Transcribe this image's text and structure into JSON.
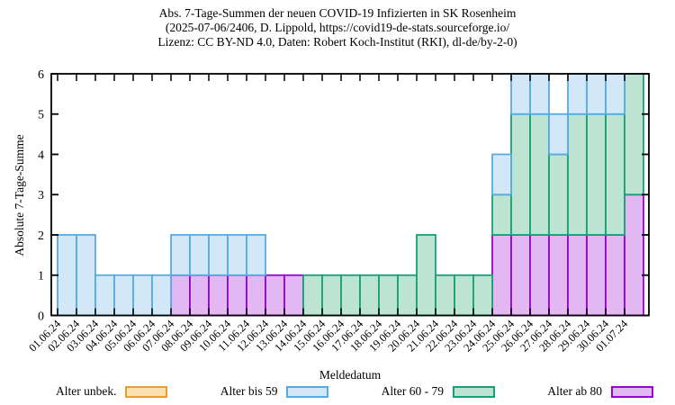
{
  "title": {
    "line1": "Abs. 7-Tage-Summen der neuen COVID-19 Infizierten in SK Rosenheim",
    "line2": "(2025-07-06/2406, D. Lippold, https://covid19-de-stats.sourceforge.io/",
    "line3": "Lizenz: CC BY-ND 4.0, Daten: Robert Koch-Institut (RKI), dl-de/by-2-0)"
  },
  "axes": {
    "y_label": "Absolute 7-Tage-Summe",
    "x_label": "Meldedatum",
    "y_ticks": [
      0,
      1,
      2,
      3,
      4,
      5,
      6
    ],
    "y_range": [
      0,
      6
    ]
  },
  "legend": {
    "items": [
      {
        "label": "Alter unbek.",
        "fill": "#FBE1AE",
        "border": "#E69F33"
      },
      {
        "label": "Alter bis 59",
        "fill": "#D2E8F8",
        "border": "#58ABE0"
      },
      {
        "label": "Alter 60 - 79",
        "fill": "#BDE4D2",
        "border": "#17A077"
      },
      {
        "label": "Alter ab 80",
        "fill": "#E3B7F2",
        "border": "#9405D2"
      }
    ]
  },
  "chart_data": {
    "type": "bar",
    "stacked": true,
    "title": "Abs. 7-Tage-Summen der neuen COVID-19 Infizierten in SK Rosenheim",
    "xlabel": "Meldedatum",
    "ylabel": "Absolute 7-Tage-Summe",
    "ylim": [
      0,
      6
    ],
    "grid": false,
    "legend_position": "bottom",
    "x_tick_rotation": 45,
    "categories": [
      "01.06.24",
      "02.06.24",
      "03.06.24",
      "04.06.24",
      "05.06.24",
      "06.06.24",
      "07.06.24",
      "08.06.24",
      "09.06.24",
      "10.06.24",
      "11.06.24",
      "12.06.24",
      "13.06.24",
      "14.06.24",
      "15.06.24",
      "16.06.24",
      "17.06.24",
      "18.06.24",
      "19.06.24",
      "20.06.24",
      "21.06.24",
      "22.06.24",
      "23.06.24",
      "24.06.24",
      "25.06.24",
      "26.06.24",
      "27.06.24",
      "28.06.24",
      "29.06.24",
      "30.06.24",
      "01.07.24"
    ],
    "series": [
      {
        "name": "Alter ab 80",
        "fill": "#E3B7F2",
        "border": "#9405D2",
        "values": [
          0,
          0,
          0,
          0,
          0,
          0,
          1,
          1,
          1,
          1,
          1,
          1,
          1,
          0,
          0,
          0,
          0,
          0,
          0,
          0,
          0,
          0,
          0,
          2,
          2,
          2,
          2,
          2,
          2,
          2,
          3
        ]
      },
      {
        "name": "Alter 60 - 79",
        "fill": "#BDE4D2",
        "border": "#17A077",
        "values": [
          0,
          0,
          0,
          0,
          0,
          0,
          0,
          0,
          0,
          0,
          0,
          0,
          0,
          1,
          1,
          1,
          1,
          1,
          1,
          2,
          1,
          1,
          1,
          1,
          3,
          3,
          2,
          3,
          3,
          3,
          3
        ]
      },
      {
        "name": "Alter bis 59",
        "fill": "#D2E8F8",
        "border": "#58ABE0",
        "values": [
          2,
          2,
          1,
          1,
          1,
          1,
          1,
          1,
          1,
          1,
          1,
          0,
          0,
          0,
          0,
          0,
          0,
          0,
          0,
          0,
          0,
          0,
          0,
          1,
          1,
          1,
          1,
          1,
          1,
          1,
          0
        ]
      },
      {
        "name": "Alter unbek.",
        "fill": "#FBE1AE",
        "border": "#E69F33",
        "values": [
          0,
          0,
          0,
          0,
          0,
          0,
          0,
          0,
          0,
          0,
          0,
          0,
          0,
          0,
          0,
          0,
          0,
          0,
          0,
          0,
          0,
          0,
          0,
          0,
          0,
          0,
          0,
          0,
          0,
          0,
          0
        ]
      }
    ]
  }
}
